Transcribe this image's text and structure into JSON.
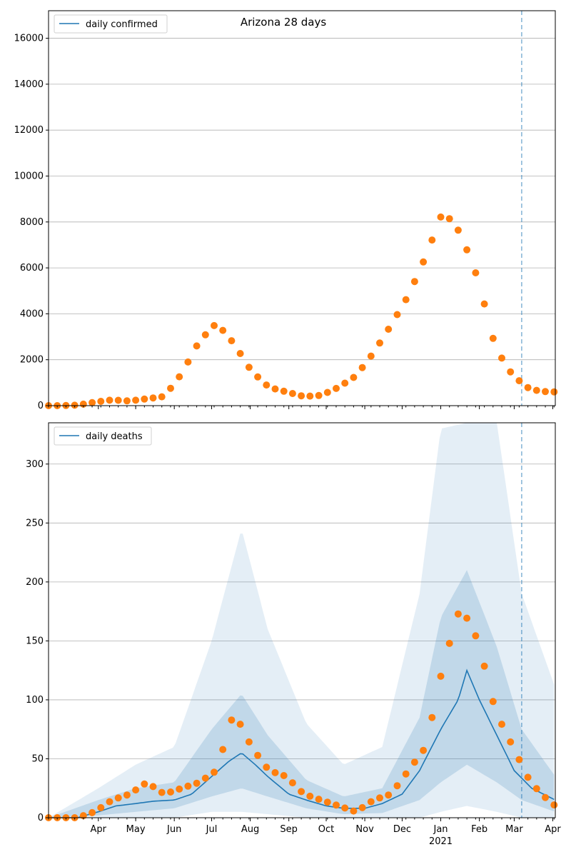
{
  "colors": {
    "line": "#1f77b4",
    "points": "#ff7f0e",
    "grid": "#b0b0b0",
    "band": "#1f77b4"
  },
  "chart_data": [
    {
      "type": "scatter",
      "title": "Arizona 28 days",
      "legend": {
        "label": "daily confirmed",
        "placement": "top-left"
      },
      "ylim": [
        0,
        17200
      ],
      "yticks": [
        0,
        2000,
        4000,
        6000,
        8000,
        10000,
        12000,
        14000,
        16000
      ],
      "xlim": [
        "2020-02-21",
        "2021-04-03"
      ],
      "grid": "y",
      "vline_date": "2021-03-07",
      "sample_every_days": 7,
      "points": [
        [
          "2020-03-01",
          0
        ],
        [
          "2020-03-15",
          20
        ],
        [
          "2020-03-29",
          150
        ],
        [
          "2020-04-12",
          250
        ],
        [
          "2020-04-26",
          200
        ],
        [
          "2020-05-10",
          300
        ],
        [
          "2020-05-24",
          400
        ],
        [
          "2020-06-07",
          1400
        ],
        [
          "2020-06-21",
          2800
        ],
        [
          "2020-07-05",
          3600
        ],
        [
          "2020-07-19",
          2700
        ],
        [
          "2020-08-02",
          1500
        ],
        [
          "2020-08-16",
          800
        ],
        [
          "2020-08-30",
          600
        ],
        [
          "2020-09-13",
          400
        ],
        [
          "2020-09-27",
          450
        ],
        [
          "2020-10-11",
          800
        ],
        [
          "2020-10-25",
          1300
        ],
        [
          "2020-11-08",
          2300
        ],
        [
          "2020-11-22",
          3500
        ],
        [
          "2020-12-06",
          4800
        ],
        [
          "2020-12-20",
          6500
        ],
        [
          "2021-01-03",
          8500
        ],
        [
          "2021-01-17",
          7500
        ],
        [
          "2021-01-31",
          5500
        ],
        [
          "2021-02-14",
          2500
        ],
        [
          "2021-02-28",
          1300
        ],
        [
          "2021-03-14",
          700
        ],
        [
          "2021-03-28",
          600
        ],
        [
          "2021-04-03",
          600
        ]
      ]
    },
    {
      "type": "line",
      "legend": {
        "label": "daily deaths",
        "placement": "top-left"
      },
      "ylim": [
        0,
        335
      ],
      "yticks": [
        0,
        50,
        100,
        150,
        200,
        250,
        300
      ],
      "xlim": [
        "2020-02-21",
        "2021-04-03"
      ],
      "grid": "y",
      "vline_date": "2021-03-07",
      "sample_every_days": 7,
      "xtick_labels": [
        {
          "date": "2020-04-01",
          "label": "Apr"
        },
        {
          "date": "2020-05-01",
          "label": "May"
        },
        {
          "date": "2020-06-01",
          "label": "Jun"
        },
        {
          "date": "2020-07-01",
          "label": "Jul"
        },
        {
          "date": "2020-08-01",
          "label": "Aug"
        },
        {
          "date": "2020-09-01",
          "label": "Sep"
        },
        {
          "date": "2020-10-01",
          "label": "Oct"
        },
        {
          "date": "2020-11-01",
          "label": "Nov"
        },
        {
          "date": "2020-12-01",
          "label": "Dec"
        },
        {
          "date": "2021-01-01",
          "label": "Jan"
        },
        {
          "date": "2021-02-01",
          "label": "Feb"
        },
        {
          "date": "2021-03-01",
          "label": "Mar"
        },
        {
          "date": "2021-04-01",
          "label": "Apr"
        }
      ],
      "year_label": {
        "date": "2021-01-01",
        "label": "2021"
      },
      "line": [
        [
          "2020-02-21",
          0
        ],
        [
          "2020-03-15",
          0
        ],
        [
          "2020-04-01",
          5
        ],
        [
          "2020-04-15",
          10
        ],
        [
          "2020-05-01",
          12
        ],
        [
          "2020-05-15",
          14
        ],
        [
          "2020-06-01",
          15
        ],
        [
          "2020-06-15",
          20
        ],
        [
          "2020-07-01",
          35
        ],
        [
          "2020-07-15",
          48
        ],
        [
          "2020-07-25",
          55
        ],
        [
          "2020-08-05",
          45
        ],
        [
          "2020-08-15",
          35
        ],
        [
          "2020-09-01",
          20
        ],
        [
          "2020-09-15",
          15
        ],
        [
          "2020-10-01",
          10
        ],
        [
          "2020-10-15",
          8
        ],
        [
          "2020-11-01",
          8
        ],
        [
          "2020-11-15",
          12
        ],
        [
          "2020-12-01",
          20
        ],
        [
          "2020-12-15",
          40
        ],
        [
          "2021-01-01",
          75
        ],
        [
          "2021-01-15",
          100
        ],
        [
          "2021-01-22",
          125
        ],
        [
          "2021-02-01",
          100
        ],
        [
          "2021-02-15",
          70
        ],
        [
          "2021-03-01",
          40
        ],
        [
          "2021-03-15",
          25
        ],
        [
          "2021-04-03",
          15
        ]
      ],
      "band_outer": [
        [
          "2020-02-21",
          0,
          0
        ],
        [
          "2020-04-01",
          0,
          25
        ],
        [
          "2020-05-01",
          0,
          45
        ],
        [
          "2020-06-01",
          0,
          60
        ],
        [
          "2020-07-01",
          5,
          150
        ],
        [
          "2020-07-25",
          5,
          245
        ],
        [
          "2020-08-15",
          3,
          160
        ],
        [
          "2020-09-15",
          0,
          80
        ],
        [
          "2020-10-15",
          0,
          45
        ],
        [
          "2020-11-15",
          0,
          60
        ],
        [
          "2020-12-15",
          0,
          190
        ],
        [
          "2021-01-01",
          5,
          330
        ],
        [
          "2021-01-22",
          10,
          335
        ],
        [
          "2021-02-15",
          5,
          335
        ],
        [
          "2021-03-07",
          0,
          190
        ],
        [
          "2021-04-03",
          0,
          110
        ]
      ],
      "band_inner": [
        [
          "2020-02-21",
          0,
          0
        ],
        [
          "2020-04-01",
          2,
          15
        ],
        [
          "2020-05-01",
          5,
          25
        ],
        [
          "2020-06-01",
          8,
          30
        ],
        [
          "2020-07-01",
          18,
          75
        ],
        [
          "2020-07-25",
          25,
          105
        ],
        [
          "2020-08-15",
          18,
          70
        ],
        [
          "2020-09-15",
          8,
          32
        ],
        [
          "2020-10-15",
          3,
          18
        ],
        [
          "2020-11-15",
          4,
          25
        ],
        [
          "2020-12-15",
          15,
          85
        ],
        [
          "2021-01-01",
          30,
          170
        ],
        [
          "2021-01-22",
          45,
          210
        ],
        [
          "2021-02-15",
          30,
          145
        ],
        [
          "2021-03-07",
          15,
          75
        ],
        [
          "2021-04-03",
          5,
          35
        ]
      ],
      "points": [
        [
          "2020-03-01",
          0
        ],
        [
          "2020-03-15",
          0
        ],
        [
          "2020-03-29",
          5
        ],
        [
          "2020-04-12",
          15
        ],
        [
          "2020-04-26",
          20
        ],
        [
          "2020-05-10",
          30
        ],
        [
          "2020-05-24",
          20
        ],
        [
          "2020-06-07",
          25
        ],
        [
          "2020-06-21",
          30
        ],
        [
          "2020-07-05",
          40
        ],
        [
          "2020-07-19",
          90
        ],
        [
          "2020-08-02",
          60
        ],
        [
          "2020-08-16",
          40
        ],
        [
          "2020-08-30",
          35
        ],
        [
          "2020-09-13",
          20
        ],
        [
          "2020-09-27",
          15
        ],
        [
          "2020-10-11",
          10
        ],
        [
          "2020-10-25",
          5
        ],
        [
          "2020-11-08",
          15
        ],
        [
          "2020-11-22",
          20
        ],
        [
          "2020-12-06",
          40
        ],
        [
          "2020-12-20",
          60
        ],
        [
          "2021-01-03",
          130
        ],
        [
          "2021-01-17",
          180
        ],
        [
          "2021-01-31",
          150
        ],
        [
          "2021-02-14",
          90
        ],
        [
          "2021-02-28",
          60
        ],
        [
          "2021-03-14",
          30
        ],
        [
          "2021-03-28",
          15
        ],
        [
          "2021-04-03",
          10
        ]
      ]
    }
  ]
}
